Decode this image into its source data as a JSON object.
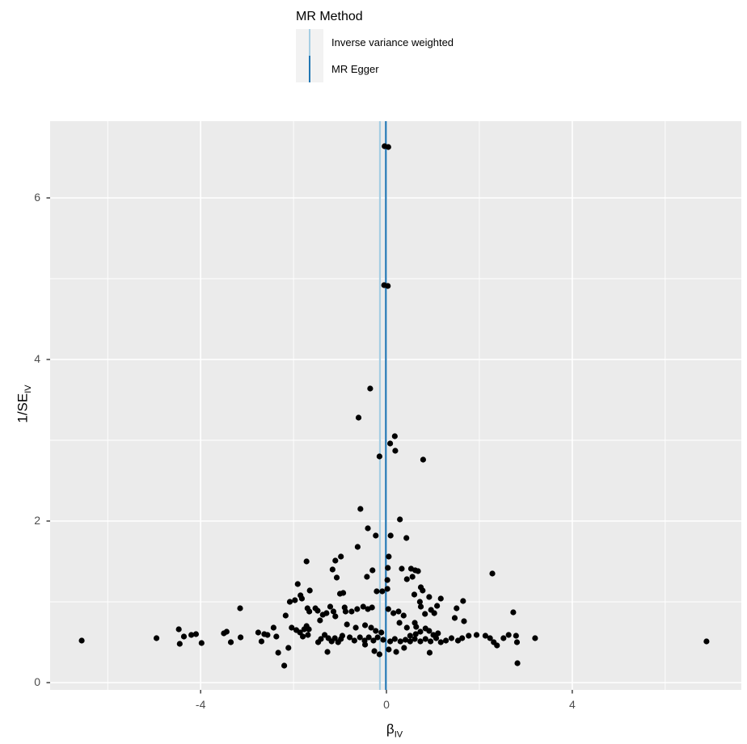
{
  "chart_data": {
    "type": "scatter",
    "title": "",
    "xlabel_main": "β",
    "xlabel_sub": "IV",
    "ylabel_main": "1/SE",
    "ylabel_sub": "IV",
    "xlim": [
      -7.24,
      7.64
    ],
    "ylim": [
      -0.09,
      6.95
    ],
    "x_major_ticks": [
      -4,
      0,
      4
    ],
    "x_tick_labels": [
      "-4",
      "0",
      "4"
    ],
    "x_minor_ticks": [
      -6,
      -2,
      2,
      6
    ],
    "y_major_ticks": [
      0,
      2,
      4,
      6
    ],
    "y_tick_labels": [
      "0",
      "2",
      "4",
      "6"
    ],
    "y_minor_ticks": [
      1,
      3,
      5
    ],
    "grid": true,
    "panel_bg": "#ebebeb",
    "grid_color": "#ffffff",
    "point_color": "#000000",
    "tick_color": "#333333",
    "legend": {
      "title": "MR Method",
      "position": "top",
      "entries": [
        {
          "label": "Inverse variance weighted",
          "color": "#a6cee3",
          "x": -0.14
        },
        {
          "label": "MR Egger",
          "color": "#2277b4",
          "x": -0.012
        }
      ]
    },
    "points": [
      [
        -0.04,
        6.64
      ],
      [
        0.04,
        6.63
      ],
      [
        -0.05,
        4.92
      ],
      [
        0.03,
        4.91
      ],
      [
        -0.35,
        3.64
      ],
      [
        -0.6,
        3.28
      ],
      [
        0.18,
        3.05
      ],
      [
        0.08,
        2.96
      ],
      [
        0.19,
        2.87
      ],
      [
        -0.15,
        2.8
      ],
      [
        0.79,
        2.76
      ],
      [
        -0.56,
        2.15
      ],
      [
        0.29,
        2.02
      ],
      [
        -0.4,
        1.91
      ],
      [
        -0.23,
        1.82
      ],
      [
        0.09,
        1.82
      ],
      [
        0.43,
        1.79
      ],
      [
        -0.62,
        1.68
      ],
      [
        0.05,
        1.56
      ],
      [
        -0.98,
        1.56
      ],
      [
        -1.1,
        1.51
      ],
      [
        -1.72,
        1.5
      ],
      [
        0.33,
        1.41
      ],
      [
        0.53,
        1.41
      ],
      [
        0.62,
        1.39
      ],
      [
        0.68,
        1.38
      ],
      [
        -1.16,
        1.4
      ],
      [
        -0.3,
        1.39
      ],
      [
        0.03,
        1.42
      ],
      [
        -0.42,
        1.31
      ],
      [
        0.02,
        1.27
      ],
      [
        -1.07,
        1.3
      ],
      [
        0.44,
        1.28
      ],
      [
        0.56,
        1.31
      ],
      [
        2.28,
        1.35
      ],
      [
        -1.91,
        1.22
      ],
      [
        0.74,
        1.18
      ],
      [
        0.78,
        1.14
      ],
      [
        -1.65,
        1.14
      ],
      [
        -0.21,
        1.13
      ],
      [
        -0.09,
        1.13
      ],
      [
        0.02,
        1.16
      ],
      [
        -1.85,
        1.08
      ],
      [
        0.6,
        1.09
      ],
      [
        -1.0,
        1.1
      ],
      [
        -0.93,
        1.11
      ],
      [
        0.92,
        1.06
      ],
      [
        1.17,
        1.04
      ],
      [
        -1.82,
        1.04
      ],
      [
        -1.97,
        1.02
      ],
      [
        -2.08,
        1.0
      ],
      [
        0.72,
        1.0
      ],
      [
        1.65,
        1.01
      ],
      [
        -3.15,
        0.92
      ],
      [
        1.09,
        0.95
      ],
      [
        1.51,
        0.92
      ],
      [
        0.74,
        0.94
      ],
      [
        -1.21,
        0.94
      ],
      [
        -0.5,
        0.94
      ],
      [
        -0.31,
        0.93
      ],
      [
        -1.7,
        0.92
      ],
      [
        -1.53,
        0.92
      ],
      [
        -0.4,
        0.91
      ],
      [
        -0.63,
        0.91
      ],
      [
        0.04,
        0.91
      ],
      [
        -1.48,
        0.89
      ],
      [
        0.96,
        0.9
      ],
      [
        -0.75,
        0.88
      ],
      [
        -1.14,
        0.88
      ],
      [
        0.26,
        0.88
      ],
      [
        -1.66,
        0.88
      ],
      [
        -0.88,
        0.88
      ],
      [
        2.73,
        0.87
      ],
      [
        1.03,
        0.86
      ],
      [
        0.15,
        0.86
      ],
      [
        -1.29,
        0.86
      ],
      [
        0.37,
        0.83
      ],
      [
        -1.37,
        0.84
      ],
      [
        0.83,
        0.85
      ],
      [
        -2.17,
        0.83
      ],
      [
        -1.1,
        0.82
      ],
      [
        1.47,
        0.8
      ],
      [
        -0.9,
        0.93
      ],
      [
        -1.43,
        0.77
      ],
      [
        1.67,
        0.76
      ],
      [
        0.28,
        0.74
      ],
      [
        0.61,
        0.74
      ],
      [
        -0.85,
        0.72
      ],
      [
        -0.46,
        0.71
      ],
      [
        -1.72,
        0.7
      ],
      [
        -2.43,
        0.68
      ],
      [
        -0.66,
        0.68
      ],
      [
        0.44,
        0.68
      ],
      [
        -2.04,
        0.68
      ],
      [
        0.64,
        0.69
      ],
      [
        -0.33,
        0.68
      ],
      [
        0.84,
        0.67
      ],
      [
        -0.23,
        0.64
      ],
      [
        0.92,
        0.64
      ],
      [
        -1.94,
        0.65
      ],
      [
        -1.77,
        0.66
      ],
      [
        -4.47,
        0.66
      ],
      [
        -1.67,
        0.66
      ],
      [
        -3.44,
        0.63
      ],
      [
        0.73,
        0.63
      ],
      [
        -1.86,
        0.62
      ],
      [
        -2.76,
        0.62
      ],
      [
        -0.11,
        0.62
      ],
      [
        -3.5,
        0.61
      ],
      [
        -4.1,
        0.6
      ],
      [
        -2.63,
        0.6
      ],
      [
        0.63,
        0.6
      ],
      [
        1.11,
        0.61
      ],
      [
        -4.2,
        0.59
      ],
      [
        -2.56,
        0.59
      ],
      [
        1.94,
        0.59
      ],
      [
        2.63,
        0.59
      ],
      [
        1.01,
        0.59
      ],
      [
        -1.69,
        0.59
      ],
      [
        -1.33,
        0.59
      ],
      [
        2.13,
        0.58
      ],
      [
        1.77,
        0.58
      ],
      [
        2.79,
        0.58
      ],
      [
        -1.8,
        0.57
      ],
      [
        -4.36,
        0.57
      ],
      [
        -2.37,
        0.57
      ],
      [
        -0.95,
        0.58
      ],
      [
        0.51,
        0.58
      ],
      [
        -0.79,
        0.56
      ],
      [
        -0.57,
        0.56
      ],
      [
        -0.38,
        0.56
      ],
      [
        -0.19,
        0.56
      ],
      [
        -3.14,
        0.56
      ],
      [
        -1.25,
        0.55
      ],
      [
        -1.11,
        0.55
      ],
      [
        1.07,
        0.55
      ],
      [
        1.4,
        0.55
      ],
      [
        1.63,
        0.55
      ],
      [
        2.23,
        0.55
      ],
      [
        2.52,
        0.55
      ],
      [
        -4.95,
        0.55
      ],
      [
        3.2,
        0.55
      ],
      [
        -1.41,
        0.54
      ],
      [
        0.61,
        0.54
      ],
      [
        0.18,
        0.54
      ],
      [
        0.84,
        0.54
      ],
      [
        -0.07,
        0.53
      ],
      [
        -1.47,
        0.5
      ],
      [
        -0.69,
        0.52
      ],
      [
        -0.47,
        0.52
      ],
      [
        -0.28,
        0.52
      ],
      [
        -6.56,
        0.52
      ],
      [
        6.89,
        0.51
      ],
      [
        1.28,
        0.52
      ],
      [
        1.54,
        0.52
      ],
      [
        -2.69,
        0.51
      ],
      [
        0.08,
        0.51
      ],
      [
        0.3,
        0.51
      ],
      [
        0.51,
        0.51
      ],
      [
        0.95,
        0.51
      ],
      [
        2.81,
        0.5
      ],
      [
        1.17,
        0.5
      ],
      [
        2.31,
        0.5
      ],
      [
        -1.04,
        0.5
      ],
      [
        -3.35,
        0.5
      ],
      [
        0.41,
        0.53
      ],
      [
        -0.98,
        0.54
      ],
      [
        -3.98,
        0.49
      ],
      [
        -4.45,
        0.48
      ],
      [
        -0.46,
        0.47
      ],
      [
        -1.18,
        0.51
      ],
      [
        2.38,
        0.46
      ],
      [
        0.73,
        0.51
      ],
      [
        -2.11,
        0.43
      ],
      [
        0.38,
        0.43
      ],
      [
        -1.27,
        0.38
      ],
      [
        0.05,
        0.41
      ],
      [
        0.21,
        0.38
      ],
      [
        -0.26,
        0.39
      ],
      [
        -2.33,
        0.37
      ],
      [
        0.93,
        0.37
      ],
      [
        -0.15,
        0.35
      ],
      [
        -2.2,
        0.21
      ],
      [
        2.82,
        0.24
      ]
    ]
  }
}
